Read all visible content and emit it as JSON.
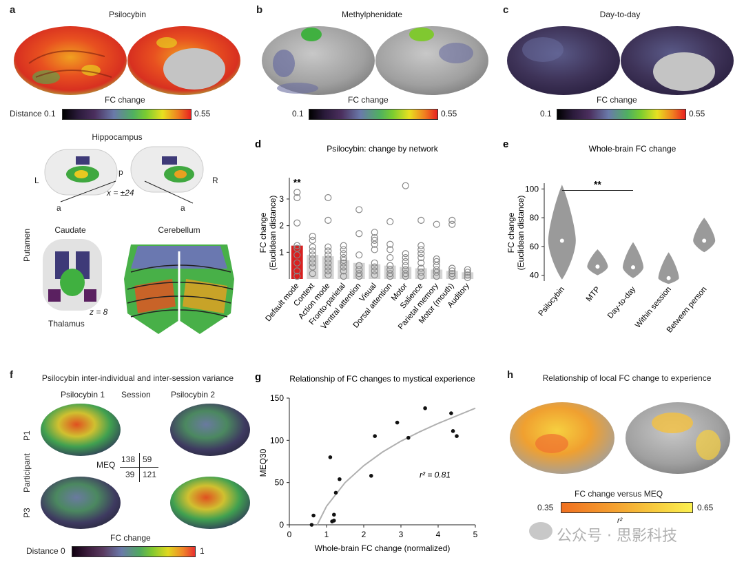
{
  "panel_a": {
    "label": "a",
    "title": "Psilocybin",
    "fc_change": "FC change",
    "distance_prefix": "Distance",
    "cmin": "0.1",
    "cmax": "0.55",
    "hippocampus": "Hippocampus",
    "hl": "L",
    "hp": "p",
    "hr": "R",
    "ha": "a",
    "hx": "x = ±24",
    "caudate": "Caudate",
    "putamen": "Putamen",
    "thalamus": "Thalamus",
    "z": "z = 8",
    "cerebellum": "Cerebellum"
  },
  "panel_b": {
    "label": "b",
    "title": "Methylphenidate",
    "fc_change": "FC change",
    "cmin": "0.1",
    "cmax": "0.55"
  },
  "panel_c": {
    "label": "c",
    "title": "Day-to-day",
    "fc_change": "FC change",
    "cmin": "0.1",
    "cmax": "0.55"
  },
  "panel_f": {
    "label": "f",
    "title": "Psilocybin inter-individual and inter-session variance",
    "psilo1": "Psilocybin 1",
    "session": "Session",
    "psilo2": "Psilocybin 2",
    "p1": "P1",
    "participant": "Participant",
    "p3": "P3",
    "meq": "MEQ",
    "m11": "138",
    "m12": "59",
    "m21": "39",
    "m22": "121",
    "fc_change": "FC change",
    "distance_prefix": "Distance",
    "cmin": "0",
    "cmax": "1"
  },
  "panel_h": {
    "label": "h",
    "title": "Relationship of local FC change to experience",
    "legend": "FC change versus MEQ",
    "cmin": "0.35",
    "cmax": "0.65",
    "r2": "r²"
  },
  "watermark": "公众号 · 思影科技",
  "chart_data": [
    {
      "id": "d",
      "label": "d",
      "type": "bar",
      "title": "Psilocybin: change by network",
      "ylabel": "FC change (Euclidean distance)",
      "ylim": [
        0,
        3.8
      ],
      "yticks": [
        1,
        2,
        3
      ],
      "significance": "**",
      "categories": [
        "Default mode",
        "Context",
        "Action mode",
        "Fronto-parietal",
        "Ventral attention",
        "Visual",
        "Dorsal attention",
        "Motor",
        "Salience",
        "Parietal memory",
        "Motor (mouth)",
        "Auditory"
      ],
      "values": [
        1.25,
        0.9,
        0.85,
        0.7,
        0.6,
        0.55,
        0.5,
        0.45,
        0.4,
        0.35,
        0.3,
        0.25
      ],
      "points": [
        [
          0.1,
          0.3,
          0.6,
          0.9,
          1.15,
          1.25,
          2.1,
          3.05,
          3.25
        ],
        [
          0.2,
          0.45,
          0.6,
          0.75,
          0.9,
          1.05,
          1.2,
          1.45,
          1.6
        ],
        [
          0.15,
          0.3,
          0.45,
          0.6,
          0.75,
          0.9,
          1.05,
          1.2,
          2.2,
          3.05
        ],
        [
          0.1,
          0.3,
          0.45,
          0.6,
          0.7,
          0.8,
          0.95,
          1.1,
          1.25
        ],
        [
          0.1,
          0.2,
          0.35,
          0.5,
          0.9,
          1.7,
          2.6
        ],
        [
          0.15,
          0.3,
          0.45,
          0.6,
          1.1,
          1.3,
          1.45,
          1.55,
          1.75
        ],
        [
          0.1,
          0.2,
          0.35,
          0.5,
          0.8,
          1.1,
          1.3,
          2.15
        ],
        [
          0.1,
          0.2,
          0.35,
          0.5,
          0.65,
          0.8,
          0.95,
          3.5
        ],
        [
          0.1,
          0.25,
          0.4,
          0.6,
          0.8,
          0.95,
          1.1,
          1.25,
          2.2
        ],
        [
          0.1,
          0.25,
          0.35,
          0.5,
          0.65,
          0.75,
          2.05
        ],
        [
          0.1,
          0.2,
          0.3,
          0.4,
          2.05,
          2.2
        ],
        [
          0.05,
          0.15,
          0.25,
          0.35
        ]
      ]
    },
    {
      "id": "e",
      "label": "e",
      "type": "violin",
      "title": "Whole-brain FC change",
      "ylabel": "FC change (Euclidean distance)",
      "ylim": [
        36,
        104
      ],
      "yticks": [
        40,
        60,
        80,
        100
      ],
      "significance": "**",
      "categories": [
        "Psilocybin",
        "MTP",
        "Day-to-day",
        "Within session",
        "Between person"
      ],
      "medians": [
        64,
        46,
        45.5,
        38,
        64
      ],
      "ranges": [
        [
          37,
          103
        ],
        [
          40,
          58
        ],
        [
          38,
          63
        ],
        [
          34,
          56
        ],
        [
          56,
          80
        ]
      ]
    },
    {
      "id": "g",
      "label": "g",
      "type": "scatter",
      "title": "Relationship of FC changes to mystical experience",
      "xlabel": "Whole-brain FC change (normalized)",
      "ylabel": "MEQ30",
      "xlim": [
        0,
        5
      ],
      "ylim": [
        0,
        150
      ],
      "xticks": [
        0,
        1,
        2,
        3,
        4,
        5
      ],
      "yticks": [
        0,
        50,
        100,
        150
      ],
      "annotation": "r² = 0.81",
      "x": [
        0.6,
        0.65,
        1.1,
        1.15,
        1.2,
        1.2,
        1.25,
        1.35,
        2.2,
        2.3,
        2.9,
        3.2,
        3.65,
        4.35,
        4.4,
        4.5
      ],
      "y": [
        0,
        11,
        80,
        4,
        12,
        5,
        38,
        54,
        58,
        105,
        121,
        103,
        138,
        132,
        111,
        105
      ],
      "fit_x": [
        0.75,
        1.0,
        1.5,
        2.0,
        2.5,
        3.0,
        3.5,
        4.0,
        4.5,
        5.0
      ],
      "fit_y": [
        0,
        22,
        50,
        70,
        86,
        99,
        110,
        120,
        129,
        138
      ]
    }
  ]
}
